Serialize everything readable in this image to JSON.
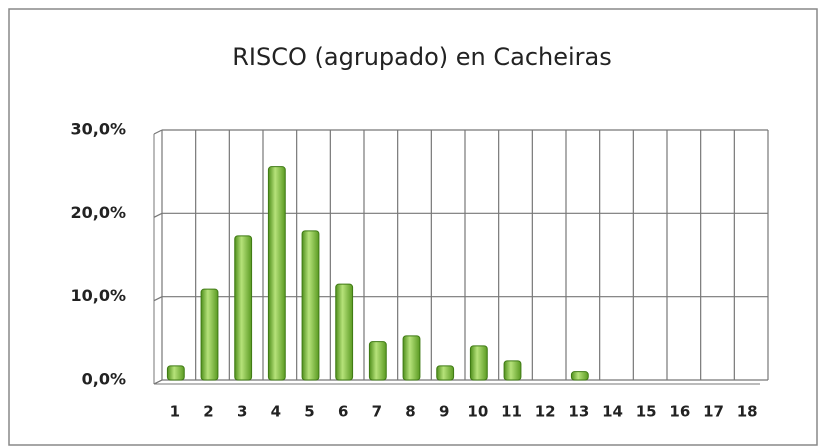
{
  "chart_data": {
    "type": "bar",
    "title": "RISCO (agrupado) en Cacheiras",
    "categories": [
      "1",
      "2",
      "3",
      "4",
      "5",
      "6",
      "7",
      "8",
      "9",
      "10",
      "11",
      "12",
      "13",
      "14",
      "15",
      "16",
      "17",
      "18"
    ],
    "values": [
      1.7,
      10.9,
      17.3,
      25.6,
      17.9,
      11.5,
      4.6,
      5.3,
      1.7,
      4.1,
      2.3,
      0,
      1.0,
      0,
      0,
      0,
      0,
      0
    ],
    "color": "#8cc63f",
    "ylim": [
      0,
      30
    ],
    "yticks": [
      {
        "value": 0,
        "label": "0,0%"
      },
      {
        "value": 10,
        "label": "10,0%"
      },
      {
        "value": 20,
        "label": "20,0%"
      },
      {
        "value": 30,
        "label": "30,0%"
      }
    ],
    "grid": true
  }
}
